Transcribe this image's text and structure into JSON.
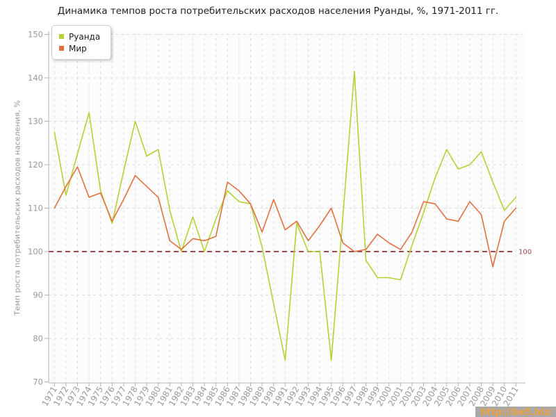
{
  "watermark": {
    "text": "http://be5.biz/",
    "color": "#f0a13c"
  },
  "legend": {
    "position": "top-left"
  },
  "chart_data": {
    "type": "line",
    "title": "Динамика темпов роста потребительских расходов населения Руанды, %, 1971-2011 гг.",
    "xlabel": "",
    "ylabel": "Темп роста потребительских расходов населения, %",
    "ylim": [
      70,
      150
    ],
    "yticks": [
      70,
      80,
      90,
      100,
      110,
      120,
      130,
      140,
      150
    ],
    "grid": true,
    "legend_position": "top-left",
    "reference_line": {
      "value": 100,
      "label": "100",
      "color": "#9e4a52"
    },
    "x": [
      1971,
      1972,
      1973,
      1974,
      1975,
      1976,
      1977,
      1978,
      1979,
      1980,
      1981,
      1982,
      1983,
      1984,
      1985,
      1986,
      1987,
      1988,
      1989,
      1990,
      1991,
      1992,
      1993,
      1994,
      1995,
      1996,
      1997,
      1998,
      1999,
      2000,
      2001,
      2002,
      2003,
      2004,
      2005,
      2006,
      2007,
      2008,
      2009,
      2010,
      2011
    ],
    "series": [
      {
        "name": "Руанда",
        "color": "#b5d133",
        "values": [
          127.5,
          113,
          122.5,
          132,
          114,
          106.5,
          118.5,
          130,
          122,
          123.5,
          109.5,
          100,
          108,
          100,
          107.5,
          114,
          111.5,
          111,
          101,
          88,
          75,
          106.5,
          100,
          100,
          75,
          108,
          141.5,
          98,
          94,
          94,
          93.5,
          101.5,
          109,
          117,
          123.5,
          119,
          120,
          123,
          116,
          109.5,
          112.5
        ]
      },
      {
        "name": "Мир",
        "color": "#e0713e",
        "values": [
          110,
          115,
          119.5,
          112.5,
          113.5,
          107,
          112,
          117.5,
          115,
          112.5,
          102.5,
          100.5,
          103,
          102.5,
          103.5,
          116,
          114,
          111,
          104.5,
          112,
          105,
          107,
          102.5,
          106,
          110,
          102,
          100,
          100.5,
          104,
          102,
          100.5,
          104.5,
          111.5,
          111,
          107.5,
          107,
          111.5,
          108.5,
          96.5,
          107,
          110
        ]
      }
    ]
  }
}
